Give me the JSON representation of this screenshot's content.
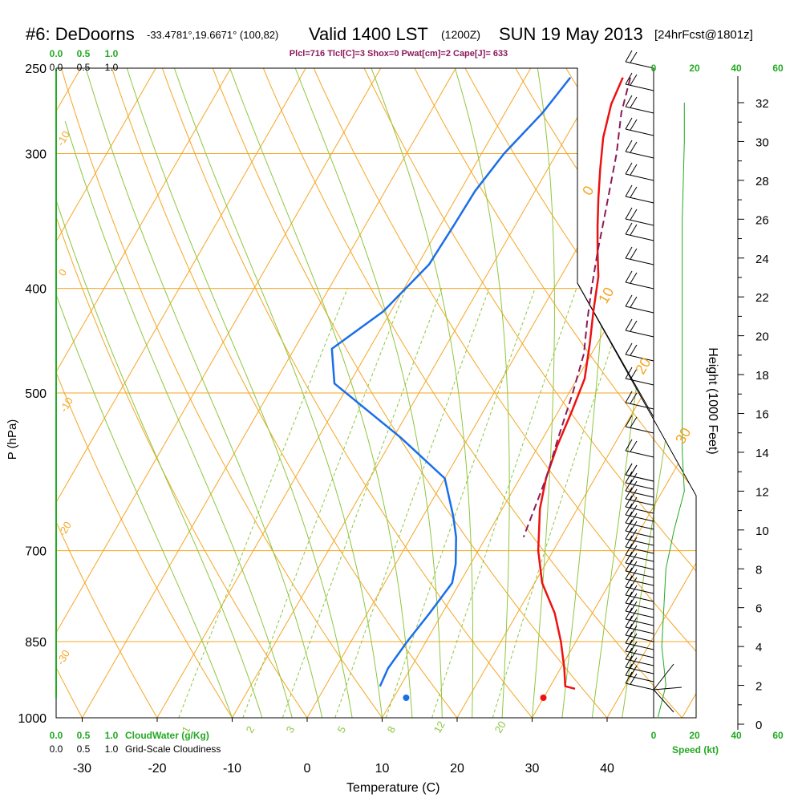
{
  "header": {
    "station": "#6: DeDoorns",
    "coords": "-33.4781°,19.6671° (100,82)",
    "valid": "Valid 1400 LST",
    "zulu": "(1200Z)",
    "date": "SUN 19 May 2013",
    "forecast": "[24hrFcst@1801z]",
    "indices": "Plcl=716 Tlcl[C]=3 Shox=0 Pwat[cm]=2 Cape[J]= 633"
  },
  "colors": {
    "isotherm": "#f5a623",
    "dry_adiabat": "#f5a623",
    "moist_adiabat": "#8ec63f",
    "mixing_ratio": "#8ec63f",
    "temperature": "#ee1111",
    "dewpoint": "#1a6ee8",
    "parcel": "#8b1a5a",
    "green_label": "#22aa22",
    "height_axis": "#000000"
  },
  "chart_data": {
    "type": "line",
    "title": "#6: DeDoorns -33.4781°,19.6671° (100,82) Valid 1400 LST (1200Z) SUN 19 May 2013 [24hrFcst@1801z]",
    "xlabel": "Temperature (C)",
    "ylabel": "P (hPa)",
    "y2label": "Height (1000 Feet)",
    "x_ticks": [
      "-30",
      "-20",
      "-10",
      "0",
      "10",
      "20",
      "30",
      "40"
    ],
    "y_ticks": [
      "250",
      "300",
      "400",
      "500",
      "700",
      "850",
      "1000"
    ],
    "y2_ticks": [
      "0",
      "2",
      "4",
      "6",
      "8",
      "10",
      "12",
      "14",
      "16",
      "18",
      "20",
      "22",
      "24",
      "26",
      "28",
      "30",
      "32"
    ],
    "xlim": [
      -35,
      35
    ],
    "ylim": [
      1000,
      250
    ],
    "log_pressure": true,
    "isotherm_labels": [
      {
        "text": "-10"
      },
      {
        "text": "0"
      },
      {
        "text": "-10"
      },
      {
        "text": "-20"
      },
      {
        "text": "-30"
      },
      {
        "text": "0"
      },
      {
        "text": "10"
      },
      {
        "text": "20"
      },
      {
        "text": "30"
      }
    ],
    "mixing_ratio_labels": [
      "1",
      "2",
      "3",
      "5",
      "8",
      "12",
      "20"
    ],
    "series": [
      {
        "key": "temperature",
        "points": [
          [
            -7.0,
            255
          ],
          [
            -6.5,
            270
          ],
          [
            -5,
            290
          ],
          [
            -3,
            310
          ],
          [
            -1,
            330
          ],
          [
            1,
            350
          ],
          [
            3,
            370
          ],
          [
            5,
            390
          ],
          [
            7,
            420
          ],
          [
            9,
            450
          ],
          [
            11,
            485
          ],
          [
            11.8,
            520
          ],
          [
            12.5,
            560
          ],
          [
            13.5,
            600
          ],
          [
            15,
            640
          ],
          [
            18,
            700
          ],
          [
            21,
            750
          ],
          [
            25,
            800
          ],
          [
            28,
            850
          ],
          [
            30.5,
            900
          ],
          [
            32,
            935
          ],
          [
            33.5,
            940
          ]
        ]
      },
      {
        "key": "dewpoint",
        "points": [
          [
            -14,
            255
          ],
          [
            -15,
            275
          ],
          [
            -17,
            300
          ],
          [
            -18,
            325
          ],
          [
            -18.2,
            350
          ],
          [
            -18.5,
            380
          ],
          [
            -21,
            420
          ],
          [
            -25,
            455
          ],
          [
            -22,
            490
          ],
          [
            -9,
            550
          ],
          [
            0,
            600
          ],
          [
            4,
            650
          ],
          [
            6,
            680
          ],
          [
            8,
            720
          ],
          [
            9,
            750
          ],
          [
            8.3,
            800
          ],
          [
            7.5,
            850
          ],
          [
            7,
            900
          ],
          [
            7.3,
            935
          ]
        ]
      },
      {
        "key": "parcel",
        "points": [
          [
            -6,
            255
          ],
          [
            -4.5,
            275
          ],
          [
            -2,
            300
          ],
          [
            1,
            340
          ],
          [
            3,
            370
          ],
          [
            5,
            400
          ],
          [
            7,
            430
          ],
          [
            9,
            460
          ],
          [
            10.5,
            500
          ],
          [
            12,
            550
          ],
          [
            13.5,
            600
          ],
          [
            15,
            680
          ]
        ]
      },
      {
        "key": "wind_speed",
        "x_unit": "kt",
        "points": [
          [
            2,
            0.3
          ],
          [
            6,
            2
          ],
          [
            4,
            4
          ],
          [
            6,
            8
          ],
          [
            10,
            10
          ],
          [
            15,
            12
          ],
          [
            14,
            14
          ],
          [
            14,
            20
          ],
          [
            14,
            26
          ],
          [
            15,
            30
          ],
          [
            15,
            32
          ]
        ]
      }
    ],
    "surface_points": [
      {
        "key": "temperature",
        "value": 31.5
      },
      {
        "key": "dewpoint",
        "value": 13.2
      }
    ],
    "bottom_scales": {
      "cloud_water": {
        "label": "CloudWater (g/Kg)",
        "ticks": [
          "0.0",
          "0.5",
          "1.0"
        ]
      },
      "cloudiness": {
        "label": "Grid-Scale Cloudiness",
        "ticks": [
          "0.0",
          "0.5",
          "1.0"
        ]
      },
      "speed": {
        "label": "Speed (kt)",
        "ticks": [
          "0",
          "20",
          "40",
          "60"
        ]
      }
    },
    "top_scales": {
      "cloud_water_ticks": [
        "0.0",
        "0.5",
        "1.0"
      ],
      "cloudiness_ticks": [
        "0.0",
        "0.5",
        "1.0"
      ],
      "speed_ticks": [
        "0",
        "20",
        "40",
        "60"
      ]
    }
  }
}
